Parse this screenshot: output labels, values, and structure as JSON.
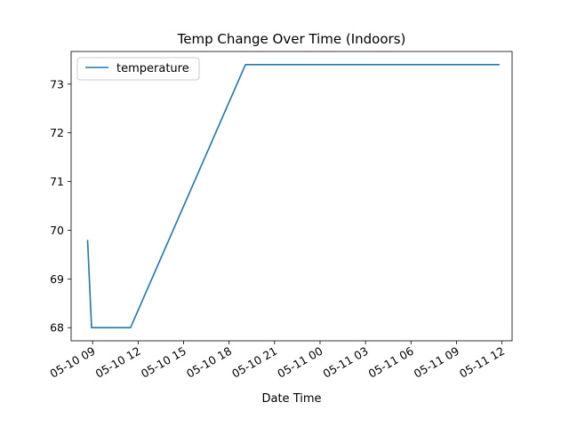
{
  "chart_data": {
    "type": "line",
    "title": "Temp Change Over Time (Indoors)",
    "xlabel": "Date Time",
    "ylabel": "",
    "x_axis_type": "datetime",
    "xlim": [
      "2023-05-10 07:35",
      "2023-05-11 12:40"
    ],
    "ylim": [
      67.73,
      73.67
    ],
    "x_ticks": [
      {
        "value": "2023-05-10 09:00",
        "label": "05-10 09"
      },
      {
        "value": "2023-05-10 12:00",
        "label": "05-10 12"
      },
      {
        "value": "2023-05-10 15:00",
        "label": "05-10 15"
      },
      {
        "value": "2023-05-10 18:00",
        "label": "05-10 18"
      },
      {
        "value": "2023-05-10 21:00",
        "label": "05-10 21"
      },
      {
        "value": "2023-05-11 00:00",
        "label": "05-11 00"
      },
      {
        "value": "2023-05-11 03:00",
        "label": "05-11 03"
      },
      {
        "value": "2023-05-11 06:00",
        "label": "05-11 06"
      },
      {
        "value": "2023-05-11 09:00",
        "label": "05-11 09"
      },
      {
        "value": "2023-05-11 12:00",
        "label": "05-11 12"
      }
    ],
    "y_ticks": [
      68,
      69,
      70,
      71,
      72,
      73
    ],
    "grid": false,
    "legend_position": "upper left",
    "series": [
      {
        "name": "temperature",
        "color": "#1f77b4",
        "points": [
          {
            "x": "2023-05-10 08:40",
            "y": 69.8
          },
          {
            "x": "2023-05-10 08:56",
            "y": 68.0
          },
          {
            "x": "2023-05-10 11:30",
            "y": 68.0
          },
          {
            "x": "2023-05-10 19:05",
            "y": 73.4
          },
          {
            "x": "2023-05-11 11:50",
            "y": 73.4
          }
        ]
      }
    ]
  }
}
